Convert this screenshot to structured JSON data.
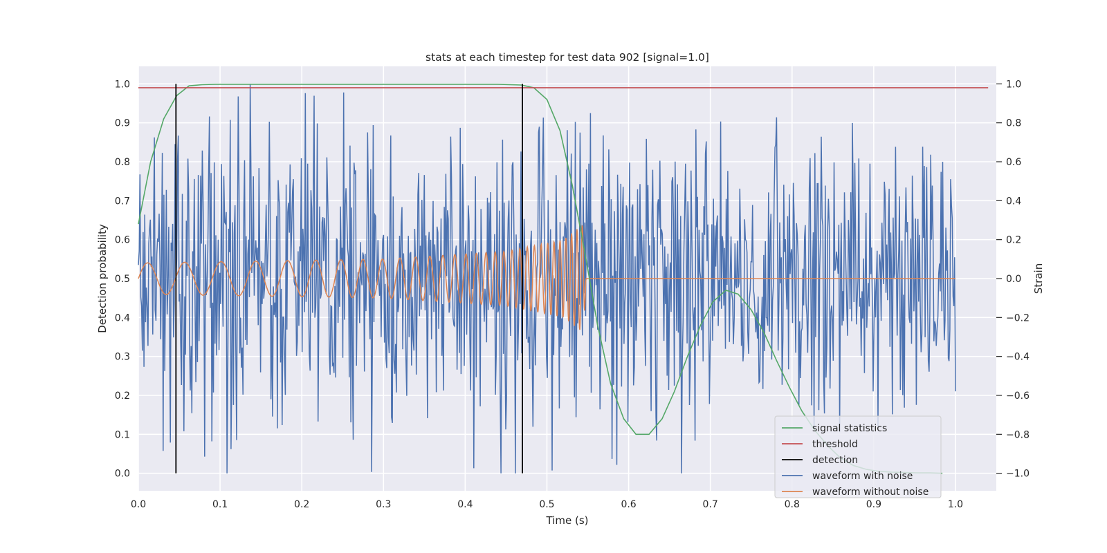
{
  "chart_data": {
    "type": "line",
    "title": "stats at each timestep for test data 902 [signal=1.0]",
    "xlabel": "Time (s)",
    "ylabel": "Detection probability",
    "y2label": "Strain",
    "xlim": [
      0.0,
      1.05
    ],
    "ylim": [
      -0.045,
      1.045
    ],
    "y2lim": [
      -1.09,
      1.09
    ],
    "x_ticks": [
      0.0,
      0.1,
      0.2,
      0.3,
      0.4,
      0.5,
      0.6,
      0.7,
      0.8,
      0.9,
      1.0
    ],
    "x_tick_labels": [
      "0.0",
      "0.1",
      "0.2",
      "0.3",
      "0.4",
      "0.5",
      "0.6",
      "0.7",
      "0.8",
      "0.9",
      "1.0"
    ],
    "y_ticks": [
      0.0,
      0.1,
      0.2,
      0.3,
      0.4,
      0.5,
      0.6,
      0.7,
      0.8,
      0.9,
      1.0
    ],
    "y_tick_labels": [
      "0.0",
      "0.1",
      "0.2",
      "0.3",
      "0.4",
      "0.5",
      "0.6",
      "0.7",
      "0.8",
      "0.9",
      "1.0"
    ],
    "y2_ticks": [
      -1.0,
      -0.8,
      -0.6,
      -0.4,
      -0.2,
      0.0,
      0.2,
      0.4,
      0.6,
      0.8,
      1.0
    ],
    "y2_tick_labels": [
      "−1.0",
      "−0.8",
      "−0.6",
      "−0.4",
      "−0.2",
      "0.0",
      "0.2",
      "0.4",
      "0.6",
      "0.8",
      "1.0"
    ],
    "grid": true,
    "legend_position": "lower-right",
    "colors": {
      "background": "#eaeaf2",
      "grid": "#ffffff",
      "signal_statistics": "#55a868",
      "threshold": "#c44e52",
      "detection": "#000000",
      "waveform_with_noise": "#4c72b0",
      "waveform_without_noise": "#dd8452"
    },
    "legend": [
      {
        "key": "signal_statistics",
        "label": "signal statistics"
      },
      {
        "key": "threshold",
        "label": "threshold"
      },
      {
        "key": "detection",
        "label": "detection"
      },
      {
        "key": "waveform_with_noise",
        "label": "waveform with noise"
      },
      {
        "key": "waveform_without_noise",
        "label": "waveform without noise"
      }
    ],
    "threshold": {
      "y": 0.99,
      "x_range": [
        0.0,
        1.04
      ]
    },
    "detections": [
      {
        "x": 0.046,
        "y_range": [
          0.0,
          1.0
        ]
      },
      {
        "x": 0.47,
        "y_range": [
          0.0,
          1.0
        ]
      }
    ],
    "signal_statistics": {
      "x": [
        0.0,
        0.015,
        0.031,
        0.047,
        0.062,
        0.078,
        0.094,
        0.109,
        0.125,
        0.2,
        0.3,
        0.4,
        0.44,
        0.469,
        0.484,
        0.5,
        0.516,
        0.531,
        0.547,
        0.562,
        0.578,
        0.594,
        0.609,
        0.625,
        0.641,
        0.656,
        0.672,
        0.688,
        0.703,
        0.719,
        0.734,
        0.75,
        0.766,
        0.781,
        0.797,
        0.812,
        0.828,
        0.844,
        0.859,
        0.875,
        0.891,
        0.906,
        0.922,
        0.938,
        0.953,
        0.969,
        0.984
      ],
      "y": [
        0.64,
        0.8,
        0.91,
        0.97,
        0.995,
        0.998,
        0.999,
        0.999,
        0.999,
        0.999,
        0.999,
        0.999,
        0.999,
        0.997,
        0.99,
        0.96,
        0.88,
        0.74,
        0.56,
        0.38,
        0.23,
        0.14,
        0.1,
        0.1,
        0.14,
        0.21,
        0.3,
        0.38,
        0.44,
        0.47,
        0.46,
        0.42,
        0.36,
        0.29,
        0.22,
        0.16,
        0.11,
        0.07,
        0.04,
        0.02,
        0.01,
        0.005,
        0.003,
        0.002,
        0.001,
        0.001,
        0.0
      ]
    },
    "waveform_without_noise": {
      "description_points": 0,
      "x_start": 0.0,
      "x_end": 1.0,
      "envelope": [
        {
          "x": 0.0,
          "amp": 0.08
        },
        {
          "x": 0.3,
          "amp": 0.1
        },
        {
          "x": 0.45,
          "amp": 0.14
        },
        {
          "x": 0.52,
          "amp": 0.2
        },
        {
          "x": 0.545,
          "amp": 0.28
        },
        {
          "x": 0.548,
          "amp": 0.0
        },
        {
          "x": 1.0,
          "amp": 0.0
        }
      ],
      "freq_start_hz": 22,
      "freq_end_hz": 160,
      "chirp_end_x": 0.548
    },
    "waveform_with_noise": {
      "x_start": 0.0,
      "x_end": 1.0,
      "samples": 1024,
      "noise_std": 0.38,
      "y_min": -1.0,
      "y_max": 1.0
    }
  }
}
